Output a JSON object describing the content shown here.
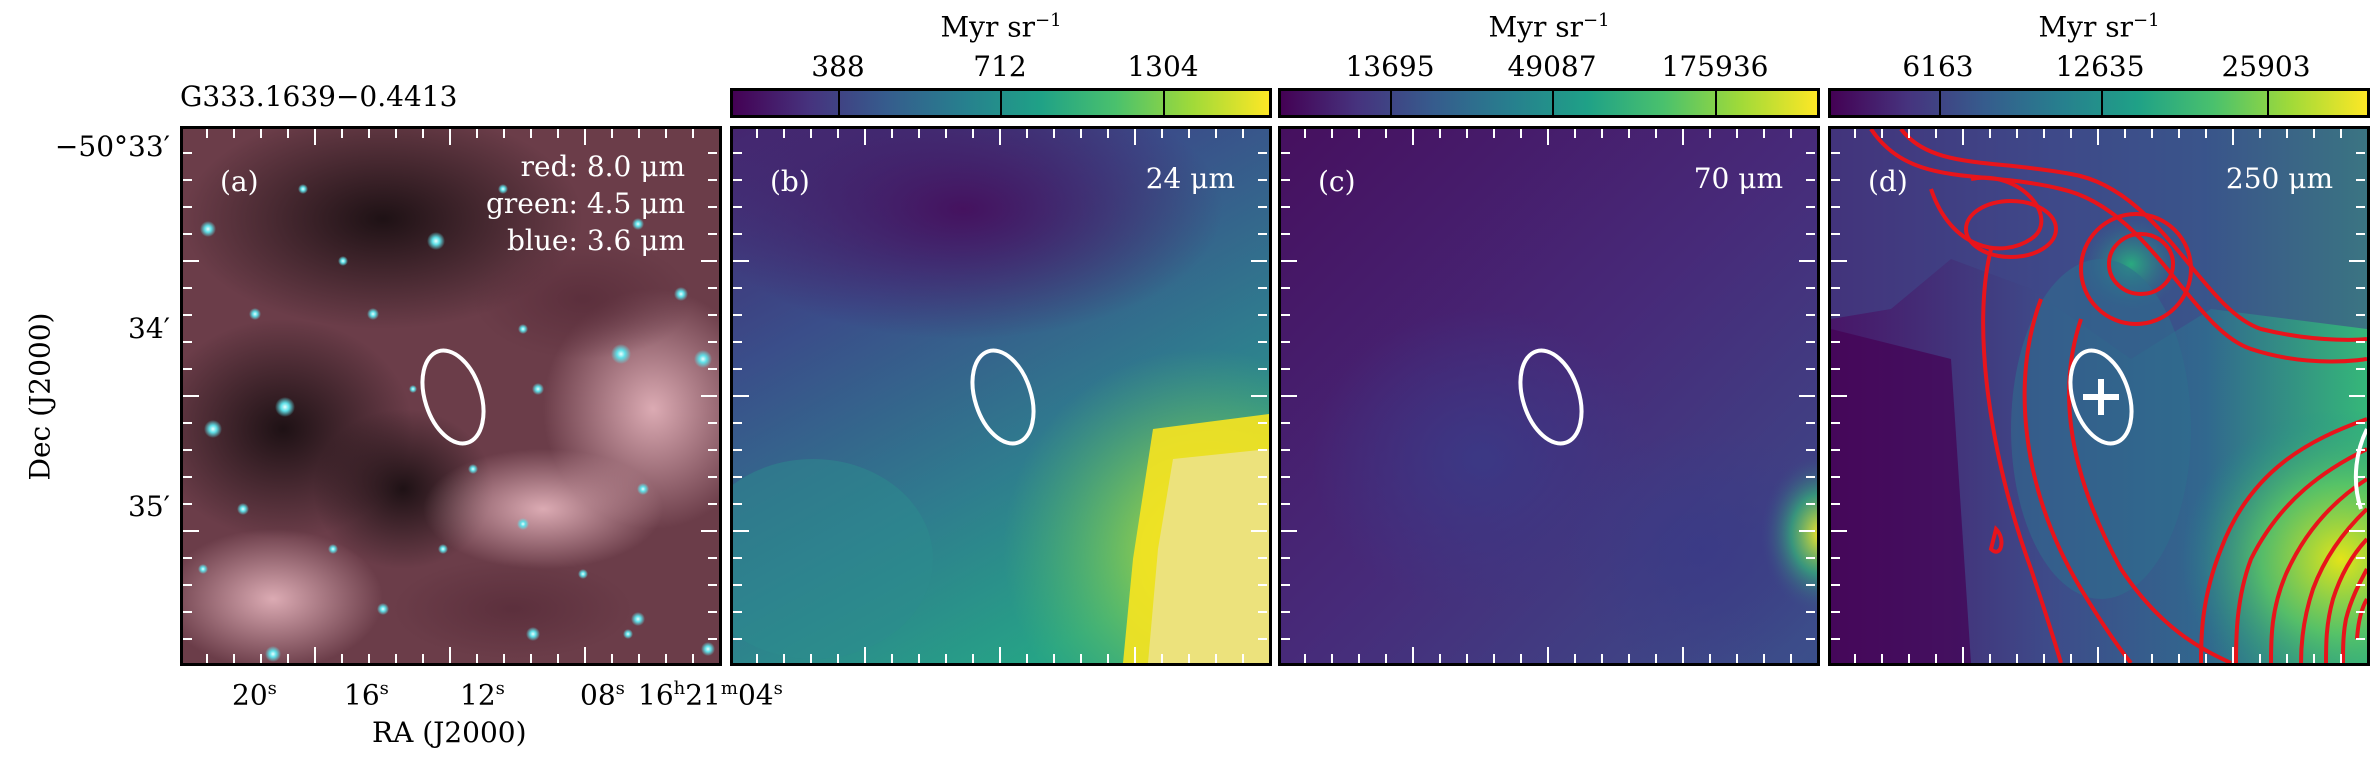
{
  "figure": {
    "source_name": "G333.1639−0.4413",
    "x_axis_label": "RA (J2000)",
    "y_axis_label": "Dec (J2000)",
    "y_ticks": [
      {
        "deg": "−50°33′"
      },
      {
        "deg": "34′"
      },
      {
        "deg": "35′"
      }
    ],
    "x_ticks": [
      {
        "main": "20",
        "sup": "s"
      },
      {
        "main": "16",
        "sup": "s"
      },
      {
        "main": "12",
        "sup": "s"
      },
      {
        "main": "08",
        "sup": "s"
      },
      {
        "main": "16",
        "sup": "h",
        "main2": "21",
        "sup2": "m",
        "main3": "04",
        "sup3": "s"
      }
    ]
  },
  "panels": [
    {
      "id": "a",
      "label": "(a)",
      "annotations": [
        "red: 8.0 μm",
        "green: 4.5 μm",
        "blue: 3.6 μm"
      ]
    },
    {
      "id": "b",
      "label": "(b)",
      "wavelength": "24 μm",
      "colorbar": {
        "unit": "Myr sr",
        "unit_sup": "−1",
        "ticks": [
          "388",
          "712",
          "1304"
        ]
      }
    },
    {
      "id": "c",
      "label": "(c)",
      "wavelength": "70 μm",
      "colorbar": {
        "unit": "Myr sr",
        "unit_sup": "−1",
        "ticks": [
          "13695",
          "49087",
          "175936"
        ]
      }
    },
    {
      "id": "d",
      "label": "(d)",
      "wavelength": "250 μm",
      "colorbar": {
        "unit": "Myr sr",
        "unit_sup": "−1",
        "ticks": [
          "6163",
          "12635",
          "25903"
        ]
      }
    }
  ],
  "colors": {
    "viridis_start": "#440154",
    "viridis_mid": "#21918c",
    "viridis_end": "#fde725",
    "contour": "#e8141b",
    "ellipse": "#ffffff"
  }
}
